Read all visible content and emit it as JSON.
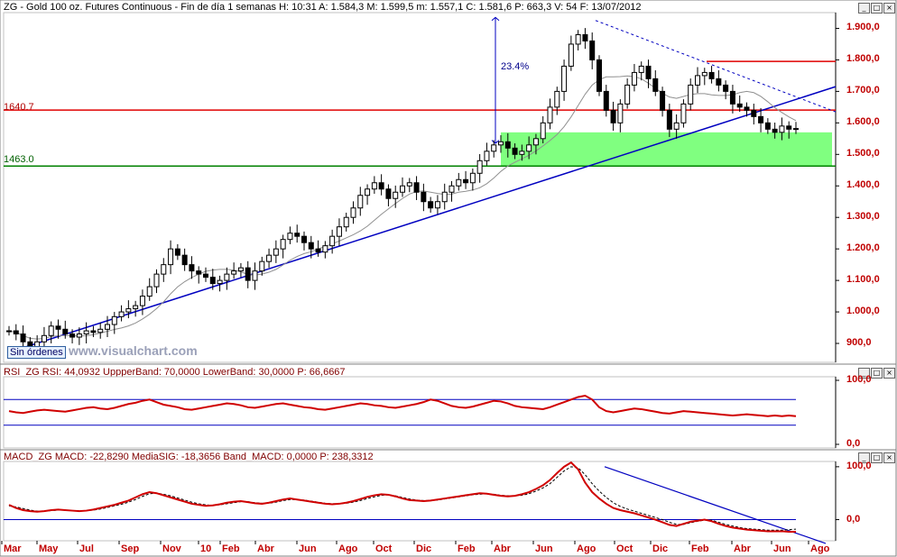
{
  "main_header": {
    "symbol": "ZG",
    "title_text": "ZG - Gold 100 oz. Futures Continuous - Fin de día 1 semanas",
    "stats": "H: 10:31  A: 1.584,3  M: 1.599,5  m: 1.557,1  C: 1.581,6  P: 663,3  V: 54  F: 13/07/2012"
  },
  "rsi_header": {
    "text": "RSI_ZG  RSI: 44,0932  UppperBand: 70,0000  LowerBand: 30,0000  P: 66,6667"
  },
  "macd_header": {
    "text": "MACD_ZG  MACD: -22,8290  MediaSIG: -18,3656  Band_MACD: 0,0000  P: 238,3312"
  },
  "window_buttons": [
    "_",
    "□",
    "×"
  ],
  "levels": {
    "red_label": "1640.7",
    "green_label": "1463.0"
  },
  "annotation": {
    "pct": "23.4%"
  },
  "orders_button": "Sin órdenes",
  "watermark": "www.visualchart.com",
  "colors": {
    "price_axis": "#c00000",
    "support_zone": "#80ff80",
    "resistance_line": "#e00000",
    "support_line": "#008000",
    "trendline": "#0000c0",
    "rsi_line": "#d00000",
    "macd_line": "#d00000",
    "signal_line": "#000000"
  },
  "chart_data": [
    {
      "type": "candlestick",
      "title": "ZG - Gold 100 oz. Futures Continuous - Fin de día 1 semanas",
      "x_ticks": [
        "Mar",
        "May",
        "Jul",
        "Sep",
        "Nov",
        "10",
        "Feb",
        "Abr",
        "Jun",
        "Ago",
        "Oct",
        "Dic",
        "Feb",
        "Abr",
        "Jun",
        "Ago",
        "Oct",
        "Dic",
        "Feb",
        "Abr",
        "Jun",
        "Ago"
      ],
      "y_ticks": [
        "1.900,0",
        "1.800,0",
        "1.700,0",
        "1.600,0",
        "1.500,0",
        "1.400,0",
        "1.300,0",
        "1.200,0",
        "1.100,0",
        "1.000,0",
        "900,0"
      ],
      "ylim": [
        840,
        1950
      ],
      "horizontal_levels": [
        1640.7,
        1463.0
      ],
      "support_zone": [
        1463,
        1570
      ],
      "close_series": [
        940,
        930,
        905,
        890,
        905,
        925,
        955,
        945,
        930,
        920,
        930,
        940,
        935,
        945,
        960,
        985,
        1000,
        1010,
        1020,
        1050,
        1080,
        1120,
        1150,
        1200,
        1180,
        1150,
        1130,
        1120,
        1110,
        1090,
        1100,
        1120,
        1130,
        1140,
        1100,
        1130,
        1160,
        1180,
        1200,
        1230,
        1250,
        1240,
        1220,
        1200,
        1190,
        1210,
        1240,
        1270,
        1300,
        1330,
        1370,
        1390,
        1410,
        1390,
        1360,
        1380,
        1400,
        1410,
        1380,
        1350,
        1330,
        1350,
        1380,
        1400,
        1420,
        1410,
        1440,
        1480,
        1510,
        1530,
        1540,
        1520,
        1500,
        1510,
        1530,
        1550,
        1600,
        1650,
        1700,
        1780,
        1850,
        1880,
        1860,
        1800,
        1700,
        1640,
        1600,
        1660,
        1720,
        1760,
        1780,
        1740,
        1700,
        1640,
        1580,
        1600,
        1660,
        1720,
        1750,
        1760,
        1740,
        1720,
        1700,
        1660,
        1650,
        1640,
        1620,
        1600,
        1580,
        1570,
        1590,
        1580,
        1582
      ]
    },
    {
      "type": "line",
      "title": "RSI_ZG",
      "y_ticks": [
        "100,0",
        "0,0"
      ],
      "bands": [
        70,
        30
      ],
      "ylim": [
        0,
        100
      ],
      "values": [
        52,
        50,
        49,
        51,
        53,
        54,
        53,
        52,
        51,
        53,
        55,
        57,
        58,
        56,
        55,
        57,
        60,
        63,
        65,
        68,
        70,
        66,
        62,
        60,
        58,
        55,
        54,
        56,
        58,
        60,
        62,
        64,
        63,
        61,
        58,
        57,
        59,
        61,
        63,
        64,
        62,
        60,
        58,
        57,
        55,
        54,
        56,
        58,
        60,
        62,
        64,
        63,
        61,
        60,
        58,
        57,
        59,
        61,
        63,
        66,
        70,
        68,
        64,
        60,
        58,
        57,
        59,
        62,
        65,
        68,
        67,
        64,
        60,
        58,
        57,
        56,
        55,
        58,
        62,
        66,
        70,
        74,
        76,
        70,
        58,
        52,
        50,
        52,
        54,
        56,
        55,
        53,
        51,
        49,
        48,
        50,
        52,
        51,
        50,
        49,
        48,
        47,
        46,
        45,
        46,
        47,
        46,
        45,
        44,
        45,
        44,
        45,
        44
      ]
    },
    {
      "type": "line",
      "title": "MACD_ZG",
      "y_ticks": [
        "100,0",
        "0,0"
      ],
      "ylim": [
        -40,
        110
      ],
      "series": [
        {
          "name": "MACD",
          "values": [
            28,
            22,
            18,
            16,
            15,
            16,
            18,
            19,
            18,
            17,
            16,
            17,
            19,
            22,
            25,
            28,
            32,
            36,
            42,
            48,
            52,
            50,
            46,
            42,
            38,
            34,
            30,
            28,
            26,
            27,
            29,
            32,
            34,
            35,
            33,
            31,
            30,
            32,
            35,
            38,
            40,
            38,
            36,
            34,
            32,
            30,
            29,
            30,
            32,
            35,
            39,
            43,
            46,
            48,
            47,
            44,
            40,
            37,
            36,
            35,
            36,
            38,
            40,
            42,
            44,
            46,
            48,
            50,
            49,
            47,
            45,
            44,
            45,
            48,
            52,
            58,
            65,
            75,
            88,
            100,
            108,
            95,
            70,
            52,
            40,
            30,
            22,
            18,
            15,
            12,
            8,
            4,
            0,
            -5,
            -10,
            -12,
            -8,
            -4,
            -2,
            0,
            -3,
            -8,
            -12,
            -15,
            -17,
            -19,
            -20,
            -21,
            -22,
            -22,
            -22,
            -23,
            -23
          ]
        },
        {
          "name": "MediaSIG",
          "values": [
            26,
            24,
            21,
            18,
            16,
            16,
            17,
            18,
            18,
            17,
            17,
            17,
            18,
            20,
            23,
            26,
            29,
            33,
            38,
            44,
            49,
            50,
            48,
            45,
            41,
            37,
            33,
            30,
            28,
            27,
            28,
            30,
            32,
            34,
            34,
            32,
            31,
            31,
            33,
            36,
            38,
            38,
            37,
            35,
            33,
            31,
            30,
            30,
            31,
            33,
            36,
            40,
            43,
            46,
            47,
            45,
            42,
            39,
            37,
            36,
            36,
            37,
            39,
            41,
            43,
            45,
            47,
            48,
            49,
            48,
            46,
            45,
            45,
            46,
            49,
            54,
            60,
            68,
            80,
            92,
            100,
            98,
            85,
            68,
            54,
            42,
            32,
            25,
            20,
            16,
            12,
            8,
            4,
            0,
            -5,
            -9,
            -9,
            -6,
            -3,
            -1,
            -1,
            -5,
            -9,
            -12,
            -15,
            -17,
            -18,
            -19,
            -20,
            -20,
            -20,
            -19,
            -18
          ]
        }
      ]
    }
  ]
}
